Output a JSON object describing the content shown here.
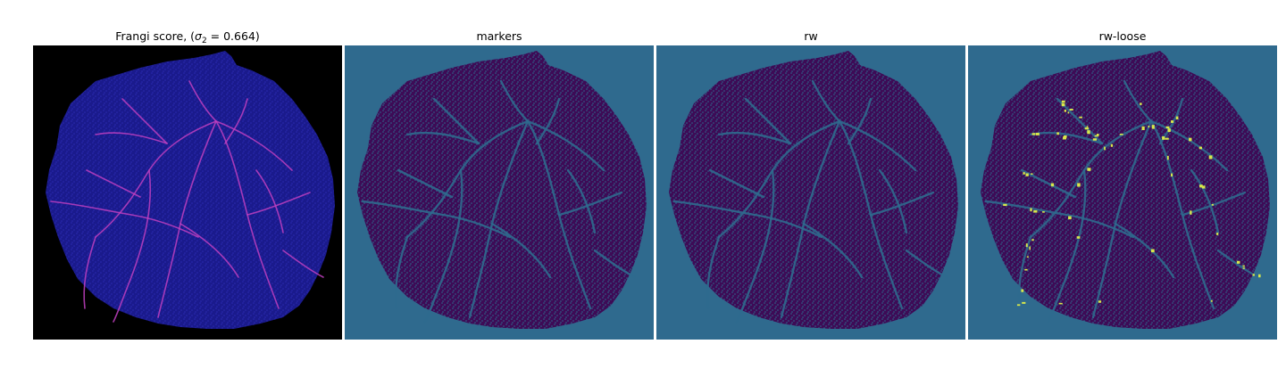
{
  "panels": [
    {
      "id": "frangi",
      "title_prefix": "Frangi score, (",
      "title_sigma": "σ",
      "title_sub": "2",
      "title_suffix": " = 0.664)",
      "background": "#000000",
      "tissue": "#1a1a8c",
      "vessel": "#c040c0"
    },
    {
      "id": "markers",
      "title": "markers",
      "background": "#2f6a8e",
      "tissue": "#3d0b56",
      "vessel": "#2f6a8e"
    },
    {
      "id": "rw",
      "title": "rw",
      "background": "#2f6a8e",
      "tissue": "#3d0b56",
      "vessel": "#2f6a8e"
    },
    {
      "id": "rw-loose",
      "title": "rw-loose",
      "background": "#2f6a8e",
      "tissue": "#3d0b56",
      "vessel": "#2f6a8e",
      "highlight": "#d8e84a"
    }
  ]
}
